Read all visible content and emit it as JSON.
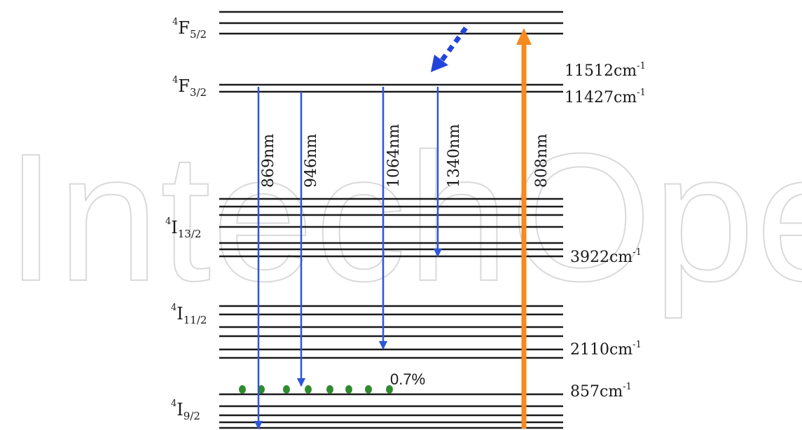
{
  "watermark": "IntechOpen",
  "colors": {
    "level": "#1a1a1a",
    "emission": "#2f56d6",
    "relaxation": "#2244dd",
    "pump": "#f58a1f",
    "population": "#2e8b2e",
    "text": "#1a1a1a"
  },
  "manifolds": [
    {
      "key": "f52",
      "sup": "4",
      "letter": "F",
      "sub": "5/2"
    },
    {
      "key": "f32",
      "sup": "4",
      "letter": "F",
      "sub": "3/2"
    },
    {
      "key": "i132",
      "sup": "4",
      "letter": "I",
      "sub": "13/2"
    },
    {
      "key": "i112",
      "sup": "4",
      "letter": "I",
      "sub": "11/2"
    },
    {
      "key": "i92",
      "sup": "4",
      "letter": "I",
      "sub": "9/2"
    }
  ],
  "energies": [
    {
      "value": "11512cm",
      "unit_exp": "-1"
    },
    {
      "value": "11427cm",
      "unit_exp": "-1"
    },
    {
      "value": "3922cm",
      "unit_exp": "-1"
    },
    {
      "value": "2110cm",
      "unit_exp": "-1"
    },
    {
      "value": "857cm",
      "unit_exp": "-1"
    }
  ],
  "transitions": [
    {
      "label": "869nm",
      "kind": "emission"
    },
    {
      "label": "946nm",
      "kind": "emission"
    },
    {
      "label": "1064nm",
      "kind": "emission"
    },
    {
      "label": "1340nm",
      "kind": "emission"
    },
    {
      "label": "808nm",
      "kind": "pump"
    }
  ],
  "population_label": "0.7%",
  "population_dot_count": 8
}
